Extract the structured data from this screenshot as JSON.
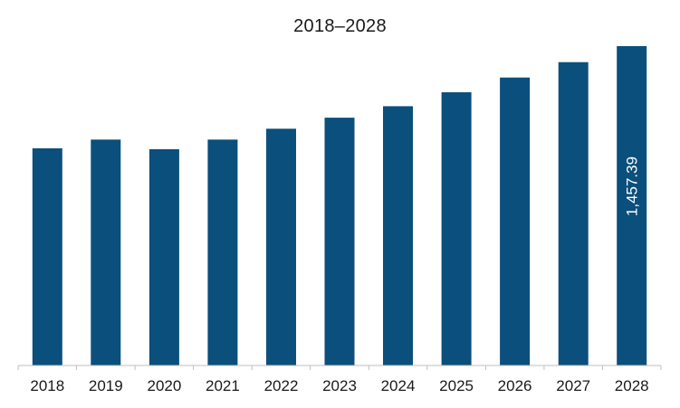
{
  "chart_data": {
    "type": "bar",
    "title": "2018–2028",
    "xlabel": "",
    "ylabel": "",
    "categories": [
      "2018",
      "2019",
      "2020",
      "2021",
      "2022",
      "2023",
      "2024",
      "2025",
      "2026",
      "2027",
      "2028"
    ],
    "values": [
      991.4,
      1030.9,
      987.0,
      1030.9,
      1080.3,
      1130.8,
      1183.4,
      1247.0,
      1314.1,
      1384.3,
      1457.39
    ],
    "data_labels": [
      {
        "category": "2028",
        "text": "1,457.39"
      }
    ],
    "ylim": [
      0,
      1600
    ],
    "grid": false,
    "legend": "none",
    "colors": {
      "bar": "#0b4f7c",
      "axis": "#bfbfbf",
      "text": "#1a1a1a",
      "label": "#ffffff"
    }
  }
}
